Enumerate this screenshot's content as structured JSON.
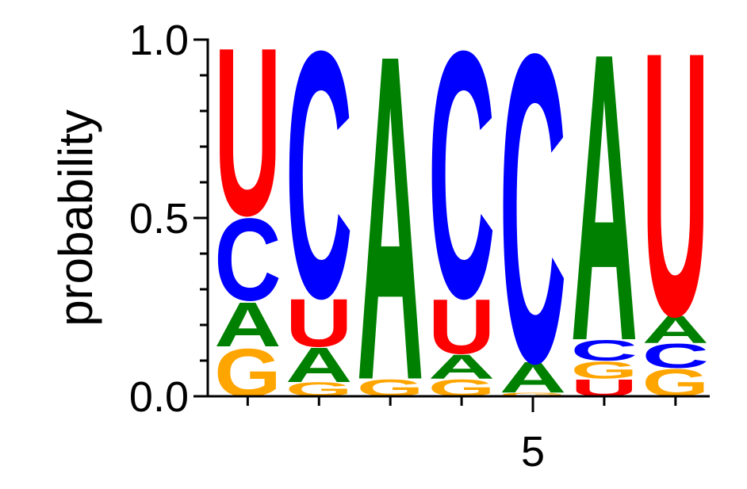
{
  "chart_data": {
    "type": "logo",
    "ylabel": "probability",
    "columns": [
      {
        "x": 1,
        "letters": [
          "G",
          "A",
          "C",
          "U"
        ],
        "values": [
          0.14,
          0.13,
          0.24,
          0.49
        ]
      },
      {
        "x": 2,
        "letters": [
          "G",
          "A",
          "U",
          "C"
        ],
        "values": [
          0.04,
          0.1,
          0.14,
          0.72
        ]
      },
      {
        "x": 3,
        "letters": [
          "G",
          "A"
        ],
        "values": [
          0.05,
          0.95
        ]
      },
      {
        "x": 4,
        "letters": [
          "G",
          "A",
          "U",
          "C"
        ],
        "values": [
          0.05,
          0.07,
          0.16,
          0.72
        ]
      },
      {
        "x": 5,
        "letters": [
          "G",
          "A",
          "C"
        ],
        "values": [
          0.01,
          0.09,
          0.9
        ]
      },
      {
        "x": 6,
        "letters": [
          "U",
          "G",
          "C",
          "A"
        ],
        "values": [
          0.05,
          0.05,
          0.06,
          0.84
        ]
      },
      {
        "x": 7,
        "letters": [
          "G",
          "C",
          "A",
          "U"
        ],
        "values": [
          0.08,
          0.07,
          0.08,
          0.77
        ]
      }
    ],
    "colors": {
      "A": "#008000",
      "C": "#0000ff",
      "G": "#ffa500",
      "U": "#ff0000"
    },
    "xlim": [
      0.44,
      7.48
    ],
    "xticks": [
      5
    ],
    "ylim": [
      0,
      1
    ],
    "yticks": [
      {
        "value": 0,
        "label": "0.0"
      },
      {
        "value": 0.5,
        "label": "0.5"
      },
      {
        "value": 1,
        "label": "1.0"
      }
    ],
    "yminorticks": [
      0.1,
      0.2,
      0.3,
      0.4,
      0.6,
      0.7,
      0.8,
      0.9
    ]
  }
}
